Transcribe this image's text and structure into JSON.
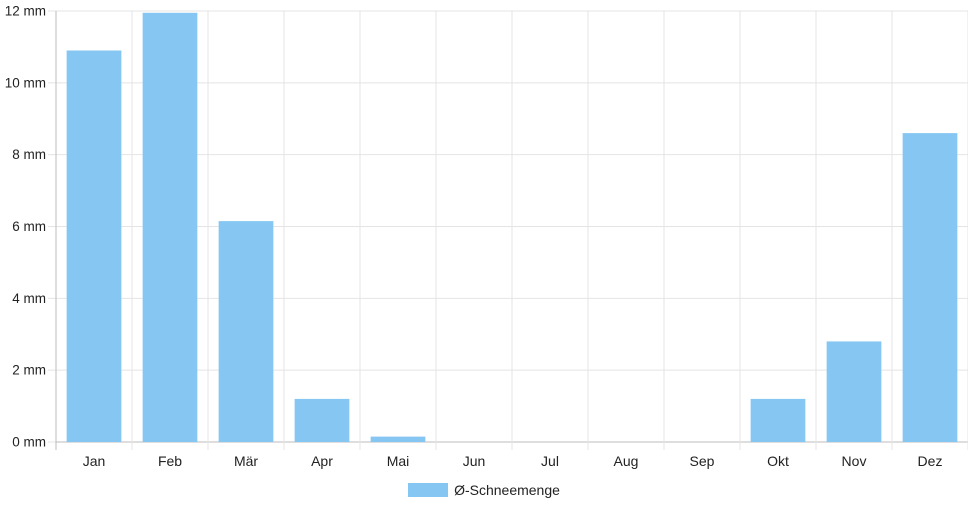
{
  "chart_data": {
    "type": "bar",
    "categories": [
      "Jan",
      "Feb",
      "Mär",
      "Apr",
      "Mai",
      "Jun",
      "Jul",
      "Aug",
      "Sep",
      "Okt",
      "Nov",
      "Dez"
    ],
    "series": [
      {
        "name": "Ø-Schneemenge",
        "values": [
          10.9,
          11.95,
          6.15,
          1.2,
          0.15,
          0,
          0,
          0,
          0,
          1.2,
          2.8,
          8.6
        ]
      }
    ],
    "yticks": [
      "0 mm",
      "2 mm",
      "4 mm",
      "6 mm",
      "8 mm",
      "10 mm",
      "12 mm"
    ],
    "ylim": [
      0,
      12
    ],
    "grid": true,
    "legend_position": "bottom",
    "colors": {
      "bar": "#85c6f2",
      "grid": "#e4e4e4",
      "axis": "#bdbdbd",
      "text": "#222222"
    }
  }
}
